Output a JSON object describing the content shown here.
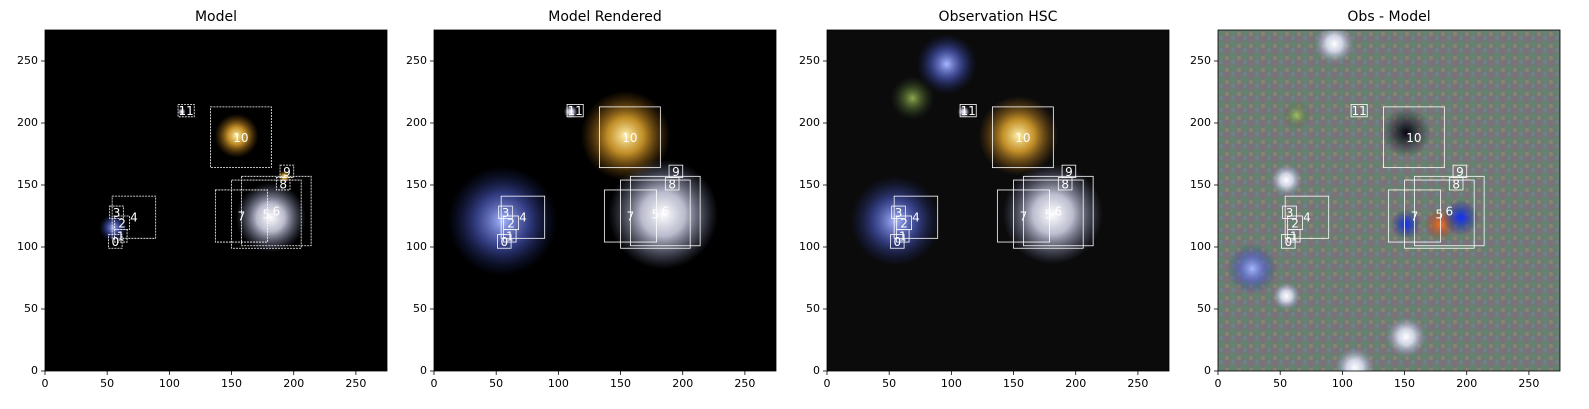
{
  "chart_data": [
    {
      "type": "image",
      "title": "Model",
      "background": "#000000",
      "box_color": "#ffffff",
      "xlim": [
        0,
        275
      ],
      "ylim": [
        0,
        275
      ],
      "xticks": [
        0,
        50,
        100,
        150,
        200,
        250
      ],
      "yticks": [
        0,
        50,
        100,
        150,
        200,
        250
      ],
      "boxes": [
        {
          "label": "0",
          "x0": 51,
          "y0": 99,
          "x1": 62,
          "y1": 110
        },
        {
          "label": "1",
          "x0": 56,
          "y0": 104,
          "x1": 66,
          "y1": 114
        },
        {
          "label": "2",
          "x0": 56,
          "y0": 114,
          "x1": 68,
          "y1": 125
        },
        {
          "label": "3",
          "x0": 52,
          "y0": 123,
          "x1": 63,
          "y1": 133
        },
        {
          "label": "4",
          "x0": 54,
          "y0": 107,
          "x1": 89,
          "y1": 141
        },
        {
          "label": "5",
          "x0": 150,
          "y0": 99,
          "x1": 206,
          "y1": 154
        },
        {
          "label": "6",
          "x0": 158,
          "y0": 101,
          "x1": 214,
          "y1": 157
        },
        {
          "label": "7",
          "x0": 137,
          "y0": 104,
          "x1": 179,
          "y1": 146
        },
        {
          "label": "8",
          "x0": 186,
          "y0": 146,
          "x1": 197,
          "y1": 156
        },
        {
          "label": "9",
          "x0": 189,
          "y0": 156,
          "x1": 200,
          "y1": 166
        },
        {
          "label": "10",
          "x0": 133,
          "y0": 164,
          "x1": 182,
          "y1": 213
        },
        {
          "label": "11",
          "x0": 107,
          "y0": 205,
          "x1": 120,
          "y1": 215
        }
      ]
    },
    {
      "type": "image",
      "title": "Model Rendered",
      "background": "#000000",
      "box_color": "#ffffff",
      "xlim": [
        0,
        275
      ],
      "ylim": [
        0,
        275
      ],
      "xticks": [
        0,
        50,
        100,
        150,
        200,
        250
      ],
      "yticks": [
        0,
        50,
        100,
        150,
        200,
        250
      ],
      "boxes": [
        {
          "label": "0",
          "x0": 51,
          "y0": 99,
          "x1": 62,
          "y1": 110
        },
        {
          "label": "1",
          "x0": 56,
          "y0": 104,
          "x1": 66,
          "y1": 114
        },
        {
          "label": "2",
          "x0": 56,
          "y0": 114,
          "x1": 68,
          "y1": 125
        },
        {
          "label": "3",
          "x0": 52,
          "y0": 123,
          "x1": 63,
          "y1": 133
        },
        {
          "label": "4",
          "x0": 54,
          "y0": 107,
          "x1": 89,
          "y1": 141
        },
        {
          "label": "5",
          "x0": 150,
          "y0": 99,
          "x1": 206,
          "y1": 154
        },
        {
          "label": "6",
          "x0": 158,
          "y0": 101,
          "x1": 214,
          "y1": 157
        },
        {
          "label": "7",
          "x0": 137,
          "y0": 104,
          "x1": 179,
          "y1": 146
        },
        {
          "label": "8",
          "x0": 186,
          "y0": 146,
          "x1": 197,
          "y1": 156
        },
        {
          "label": "9",
          "x0": 189,
          "y0": 156,
          "x1": 200,
          "y1": 166
        },
        {
          "label": "10",
          "x0": 133,
          "y0": 164,
          "x1": 182,
          "y1": 213
        },
        {
          "label": "11",
          "x0": 107,
          "y0": 205,
          "x1": 120,
          "y1": 215
        }
      ]
    },
    {
      "type": "image",
      "title": "Observation HSC",
      "background": "#0b0b0c",
      "box_color": "#ffffff",
      "xlim": [
        0,
        275
      ],
      "ylim": [
        0,
        275
      ],
      "xticks": [
        0,
        50,
        100,
        150,
        200,
        250
      ],
      "yticks": [
        0,
        50,
        100,
        150,
        200,
        250
      ],
      "boxes": [
        {
          "label": "0",
          "x0": 51,
          "y0": 99,
          "x1": 62,
          "y1": 110
        },
        {
          "label": "1",
          "x0": 56,
          "y0": 104,
          "x1": 66,
          "y1": 114
        },
        {
          "label": "2",
          "x0": 56,
          "y0": 114,
          "x1": 68,
          "y1": 125
        },
        {
          "label": "3",
          "x0": 52,
          "y0": 123,
          "x1": 63,
          "y1": 133
        },
        {
          "label": "4",
          "x0": 54,
          "y0": 107,
          "x1": 89,
          "y1": 141
        },
        {
          "label": "5",
          "x0": 150,
          "y0": 99,
          "x1": 206,
          "y1": 154
        },
        {
          "label": "6",
          "x0": 158,
          "y0": 101,
          "x1": 214,
          "y1": 157
        },
        {
          "label": "7",
          "x0": 137,
          "y0": 104,
          "x1": 179,
          "y1": 146
        },
        {
          "label": "8",
          "x0": 186,
          "y0": 146,
          "x1": 197,
          "y1": 156
        },
        {
          "label": "9",
          "x0": 189,
          "y0": 156,
          "x1": 200,
          "y1": 166
        },
        {
          "label": "10",
          "x0": 133,
          "y0": 164,
          "x1": 182,
          "y1": 213
        },
        {
          "label": "11",
          "x0": 107,
          "y0": 205,
          "x1": 120,
          "y1": 215
        }
      ]
    },
    {
      "type": "image",
      "title": "Obs - Model",
      "background": "#6f7a72",
      "box_color": "#ffffff",
      "xlim": [
        0,
        275
      ],
      "ylim": [
        0,
        275
      ],
      "xticks": [
        0,
        50,
        100,
        150,
        200,
        250
      ],
      "yticks": [
        0,
        50,
        100,
        150,
        200,
        250
      ],
      "boxes": [
        {
          "label": "0",
          "x0": 51,
          "y0": 99,
          "x1": 62,
          "y1": 110
        },
        {
          "label": "1",
          "x0": 56,
          "y0": 104,
          "x1": 66,
          "y1": 114
        },
        {
          "label": "2",
          "x0": 56,
          "y0": 114,
          "x1": 68,
          "y1": 125
        },
        {
          "label": "3",
          "x0": 52,
          "y0": 123,
          "x1": 63,
          "y1": 133
        },
        {
          "label": "4",
          "x0": 54,
          "y0": 107,
          "x1": 89,
          "y1": 141
        },
        {
          "label": "5",
          "x0": 150,
          "y0": 99,
          "x1": 206,
          "y1": 154
        },
        {
          "label": "6",
          "x0": 158,
          "y0": 101,
          "x1": 214,
          "y1": 157
        },
        {
          "label": "7",
          "x0": 137,
          "y0": 104,
          "x1": 179,
          "y1": 146
        },
        {
          "label": "8",
          "x0": 186,
          "y0": 146,
          "x1": 197,
          "y1": 156
        },
        {
          "label": "9",
          "x0": 189,
          "y0": 156,
          "x1": 200,
          "y1": 166
        },
        {
          "label": "10",
          "x0": 133,
          "y0": 164,
          "x1": 182,
          "y1": 213
        },
        {
          "label": "11",
          "x0": 107,
          "y0": 205,
          "x1": 120,
          "y1": 215
        }
      ]
    }
  ]
}
